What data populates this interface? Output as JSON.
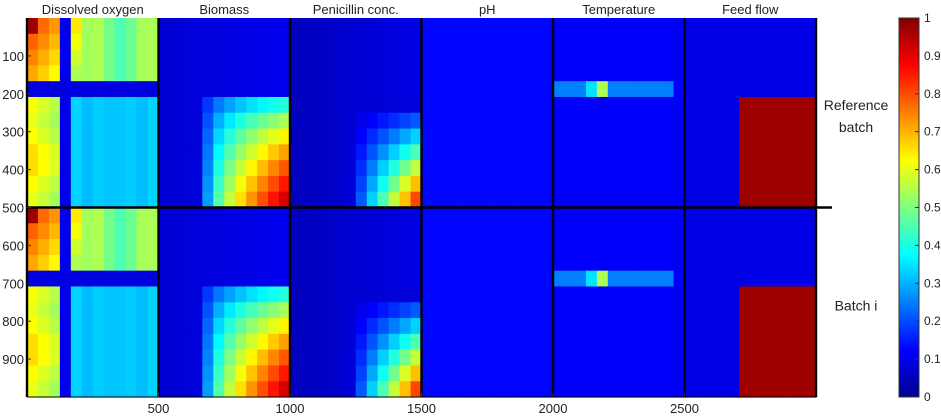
{
  "chart_data": {
    "type": "heatmap",
    "title": "",
    "xlabel": "",
    "ylabel": "",
    "xlim": [
      0,
      3000
    ],
    "ylim": [
      0,
      1000
    ],
    "panels": [
      {
        "label": "Dissolved oxygen",
        "pattern": "do"
      },
      {
        "label": "Biomass",
        "pattern": "bio"
      },
      {
        "label": "Penicillin conc.",
        "pattern": "pen"
      },
      {
        "label": "pH",
        "pattern": "ph"
      },
      {
        "label": "Temperature",
        "pattern": "temp"
      },
      {
        "label": "Feed flow",
        "pattern": "feed"
      }
    ],
    "x_ticks": [
      "500",
      "1000",
      "1500",
      "2000",
      "2500"
    ],
    "y_ticks": [
      "100",
      "200",
      "300",
      "400",
      "500",
      "600",
      "700",
      "800",
      "900"
    ],
    "batch_labels": [
      {
        "lines": [
          "Reference",
          "batch"
        ]
      },
      {
        "lines": [
          "Batch i"
        ]
      }
    ],
    "colorbar": {
      "range": [
        0,
        1
      ],
      "ticks": [
        "0",
        "0.1",
        "0.2",
        "0.3",
        "0.4",
        "0.5",
        "0.6",
        "0.7",
        "0.8",
        "0.9",
        "1"
      ],
      "colormap": "jet",
      "colors": [
        "#00008f",
        "#0000ff",
        "#00ffff",
        "#ffff00",
        "#ff0000",
        "#800000"
      ]
    },
    "grid": false,
    "legend": "none"
  }
}
